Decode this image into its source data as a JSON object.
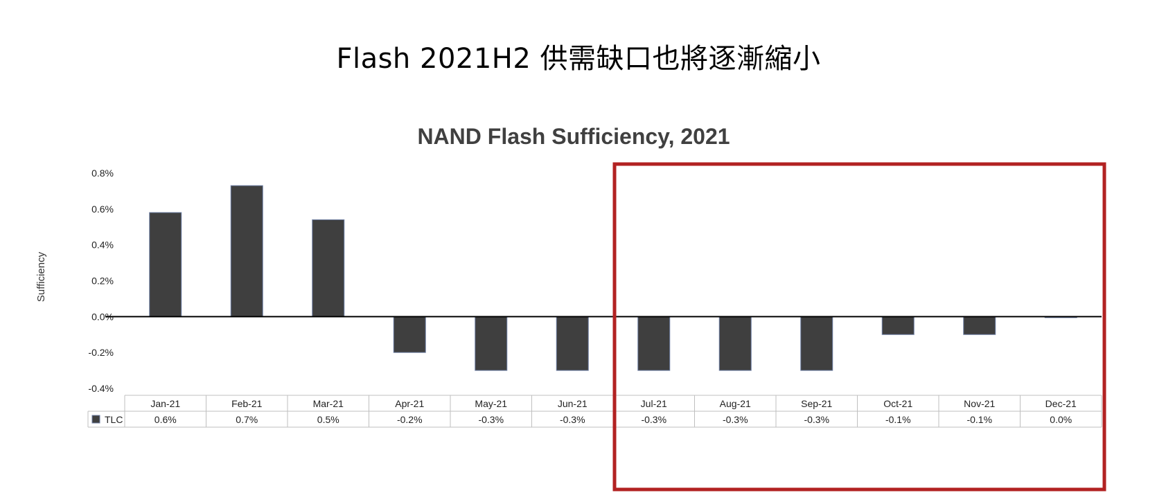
{
  "slide": {
    "title": "Flash 2021H2 供需缺口也將逐漸縮小"
  },
  "chart_data": {
    "type": "bar",
    "title": "NAND Flash Sufficiency, 2021",
    "ylabel": "Sufficiency",
    "xlabel": "",
    "categories": [
      "Jan-21",
      "Feb-21",
      "Mar-21",
      "Apr-21",
      "May-21",
      "Jun-21",
      "Jul-21",
      "Aug-21",
      "Sep-21",
      "Oct-21",
      "Nov-21",
      "Dec-21"
    ],
    "series": [
      {
        "name": "TLC",
        "values": [
          0.58,
          0.73,
          0.54,
          -0.2,
          -0.3,
          -0.3,
          -0.3,
          -0.3,
          -0.3,
          -0.1,
          -0.1,
          0.0
        ],
        "table_labels": [
          "0.6%",
          "0.7%",
          "0.5%",
          "-0.2%",
          "-0.3%",
          "-0.3%",
          "-0.3%",
          "-0.3%",
          "-0.3%",
          "-0.1%",
          "-0.1%",
          "0.0%"
        ],
        "color": "#3f3f3f"
      }
    ],
    "ylim": [
      -0.4,
      0.8
    ],
    "yticks": [
      0.8,
      0.6,
      0.4,
      0.2,
      0.0,
      -0.2,
      -0.4
    ],
    "ytick_labels": [
      "0.8%",
      "0.6%",
      "0.4%",
      "0.2%",
      "0.0%",
      "-0.2%",
      "-0.4%"
    ],
    "grid": false,
    "legend": "data-table",
    "highlight": {
      "from": "Jul-21",
      "to": "Dec-21",
      "color": "#b22222"
    }
  }
}
